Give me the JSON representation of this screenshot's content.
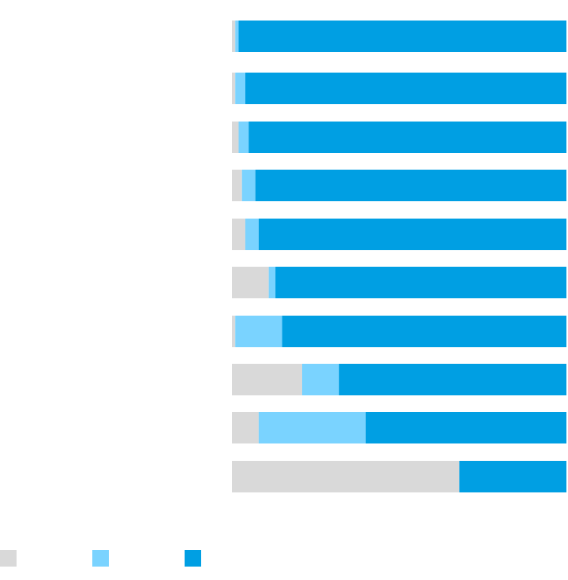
{
  "chart_data": {
    "type": "bar",
    "orientation": "horizontal",
    "stacked": true,
    "normalized_percent": true,
    "title": "",
    "xlabel": "",
    "ylabel": "",
    "xlim": [
      0,
      100
    ],
    "grid": false,
    "legend_position": "bottom-left",
    "categories": [
      "",
      "",
      "",
      "",
      "",
      "",
      "",
      "",
      "",
      ""
    ],
    "series": [
      {
        "color": "#d9d9d9",
        "values": [
          1,
          1,
          2,
          3,
          4,
          11,
          1,
          21,
          8,
          68
        ]
      },
      {
        "color": "#7ad3ff",
        "values": [
          1,
          3,
          3,
          4,
          4,
          2,
          14,
          11,
          32,
          0
        ]
      },
      {
        "color": "#009fe3",
        "values": [
          98,
          96,
          95,
          93,
          92,
          87,
          85,
          68,
          60,
          32
        ]
      }
    ]
  }
}
